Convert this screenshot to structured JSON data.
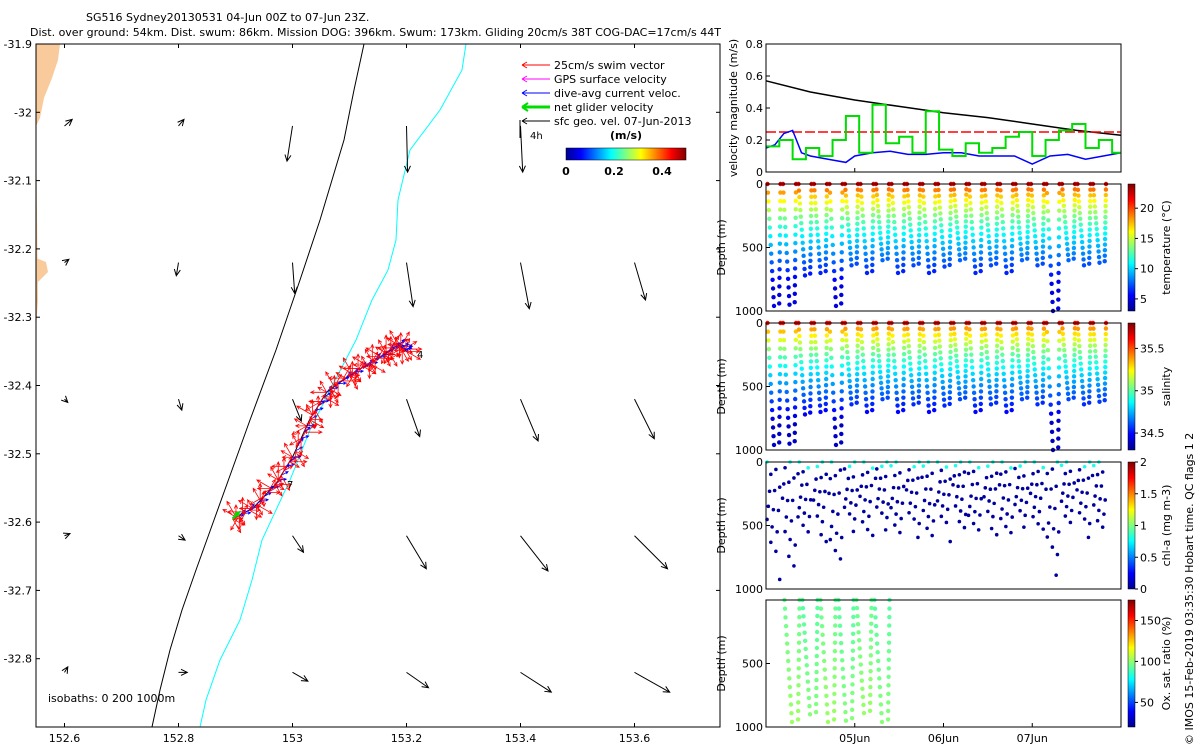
{
  "title_line1": "SG516 Sydney20130531 04-Jun 00Z to 07-Jun 23Z.",
  "title_line2": "Dist. over ground: 54km. Dist. swum: 86km. Mission DOG: 396km. Swum: 173km. Gliding 20cm/s 38T COG-DAC=17cm/s 44T",
  "credit": "© IMOS 15-Feb-2019 03:35:30 Hobart time. QC flags 1  2",
  "colors": {
    "land": "#f9cb9c",
    "coast_isobath": "#000000",
    "isobath_200": "#000000",
    "isobath_1000": "#00ffff",
    "swim": "#ff0000",
    "gps": "#ff00ff",
    "dac": "#0000ff",
    "net": "#00dd00",
    "geo": "#000000"
  },
  "chart_data": [
    {
      "type": "vector-map",
      "xlim": [
        152.55,
        153.75
      ],
      "ylim": [
        -32.9,
        -31.9
      ],
      "xticks": [
        152.6,
        152.8,
        153,
        153.2,
        153.4,
        153.6
      ],
      "xtick_labels": [
        "152.6",
        "152.8",
        "153",
        "153.2",
        "153.4",
        "153.6"
      ],
      "yticks": [
        -31.9,
        -32,
        -32.1,
        -32.2,
        -32.3,
        -32.4,
        -32.5,
        -32.6,
        -32.7,
        -32.8
      ],
      "ytick_labels": [
        "-31.9",
        "-32",
        "-32.1",
        "-32.2",
        "-32.3",
        "-32.4",
        "-32.5",
        "-32.6",
        "-32.7",
        "-32.8"
      ],
      "legend": [
        "25cm/s swim vector",
        "GPS surface velocity",
        "dive-avg current veloc.",
        "net glider velocity",
        "sfc geo. vel. 07-Jun-2013"
      ],
      "legend_scale_label": "4h",
      "colorbar": {
        "label": "(m/s)",
        "ticks": [
          "0",
          "0.2",
          "0.4"
        ],
        "range": [
          0,
          0.5
        ]
      },
      "isobaths_text": "isobaths: 0   200  1000m",
      "track_labels": [
        "4",
        "7"
      ],
      "track": [
        [
          152.895,
          -32.595
        ],
        [
          152.93,
          -32.58
        ],
        [
          152.97,
          -32.545
        ],
        [
          153.0,
          -32.505
        ],
        [
          153.03,
          -32.45
        ],
        [
          153.06,
          -32.41
        ],
        [
          153.1,
          -32.385
        ],
        [
          153.13,
          -32.37
        ],
        [
          153.16,
          -32.355
        ],
        [
          153.185,
          -32.34
        ],
        [
          153.2,
          -32.35
        ]
      ],
      "geo_vectors": [
        {
          "lon": 152.6,
          "lat": -32.02,
          "u": 0.07,
          "v": 0.06
        },
        {
          "lon": 152.8,
          "lat": -32.02,
          "u": 0.05,
          "v": 0.06
        },
        {
          "lon": 153.0,
          "lat": -32.02,
          "u": -0.05,
          "v": -0.32
        },
        {
          "lon": 153.2,
          "lat": -32.02,
          "u": 0.01,
          "v": -0.42
        },
        {
          "lon": 153.4,
          "lat": -32.02,
          "u": 0.02,
          "v": -0.42
        },
        {
          "lon": 152.6,
          "lat": -32.22,
          "u": 0.04,
          "v": 0.03
        },
        {
          "lon": 152.8,
          "lat": -32.22,
          "u": -0.02,
          "v": -0.12
        },
        {
          "lon": 153.0,
          "lat": -32.22,
          "u": 0.02,
          "v": -0.28
        },
        {
          "lon": 153.2,
          "lat": -32.22,
          "u": 0.06,
          "v": -0.4
        },
        {
          "lon": 153.4,
          "lat": -32.22,
          "u": 0.08,
          "v": -0.42
        },
        {
          "lon": 153.6,
          "lat": -32.22,
          "u": 0.1,
          "v": -0.34
        },
        {
          "lon": 152.6,
          "lat": -32.42,
          "u": 0.03,
          "v": -0.03
        },
        {
          "lon": 152.8,
          "lat": -32.42,
          "u": 0.03,
          "v": -0.1
        },
        {
          "lon": 153.0,
          "lat": -32.42,
          "u": 0.08,
          "v": -0.2
        },
        {
          "lon": 153.2,
          "lat": -32.42,
          "u": 0.12,
          "v": -0.34
        },
        {
          "lon": 153.4,
          "lat": -32.42,
          "u": 0.16,
          "v": -0.38
        },
        {
          "lon": 153.6,
          "lat": -32.42,
          "u": 0.18,
          "v": -0.36
        },
        {
          "lon": 152.6,
          "lat": -32.62,
          "u": 0.05,
          "v": 0.02
        },
        {
          "lon": 152.8,
          "lat": -32.62,
          "u": 0.06,
          "v": -0.04
        },
        {
          "lon": 153.0,
          "lat": -32.62,
          "u": 0.1,
          "v": -0.15
        },
        {
          "lon": 153.2,
          "lat": -32.62,
          "u": 0.18,
          "v": -0.3
        },
        {
          "lon": 153.4,
          "lat": -32.62,
          "u": 0.25,
          "v": -0.32
        },
        {
          "lon": 153.6,
          "lat": -32.62,
          "u": 0.3,
          "v": -0.3
        },
        {
          "lon": 152.6,
          "lat": -32.82,
          "u": 0.03,
          "v": 0.05
        },
        {
          "lon": 152.8,
          "lat": -32.82,
          "u": 0.08,
          "v": 0.0
        },
        {
          "lon": 153.0,
          "lat": -32.82,
          "u": 0.14,
          "v": -0.08
        },
        {
          "lon": 153.2,
          "lat": -32.82,
          "u": 0.2,
          "v": -0.14
        },
        {
          "lon": 153.4,
          "lat": -32.82,
          "u": 0.28,
          "v": -0.18
        },
        {
          "lon": 153.6,
          "lat": -32.82,
          "u": 0.32,
          "v": -0.18
        }
      ]
    },
    {
      "type": "line",
      "ylabel": "velocity magnitude (m/s)",
      "ylim": [
        0,
        0.8
      ],
      "yticks": [
        0,
        0.2,
        0.4,
        0.6,
        0.8
      ],
      "ytick_labels": [
        "0",
        "0.2",
        "0.4",
        "0.6",
        "0.8"
      ],
      "xlim": [
        0,
        4
      ],
      "xticks": [
        1,
        2,
        3
      ],
      "xtick_labels": [
        "05Jun",
        "06Jun",
        "07Jun"
      ],
      "series": [
        {
          "color": "#000000",
          "x": [
            0,
            0.5,
            1,
            1.5,
            2,
            2.5,
            3,
            3.5,
            4
          ],
          "y": [
            0.57,
            0.5,
            0.45,
            0.41,
            0.37,
            0.34,
            0.3,
            0.26,
            0.23
          ]
        },
        {
          "color": "#ff0000",
          "dashed": true,
          "x": [
            0,
            4
          ],
          "y": [
            0.25,
            0.25
          ]
        },
        {
          "color": "#0000ff",
          "x": [
            0,
            0.1,
            0.2,
            0.3,
            0.4,
            0.5,
            0.7,
            0.9,
            1.0,
            1.2,
            1.4,
            1.6,
            1.8,
            2.0,
            2.2,
            2.4,
            2.6,
            2.8,
            3.0,
            3.2,
            3.4,
            3.6,
            3.8,
            4.0
          ],
          "y": [
            0.15,
            0.17,
            0.24,
            0.26,
            0.12,
            0.1,
            0.08,
            0.06,
            0.1,
            0.12,
            0.13,
            0.11,
            0.11,
            0.12,
            0.12,
            0.1,
            0.1,
            0.1,
            0.05,
            0.1,
            0.11,
            0.08,
            0.1,
            0.12
          ]
        },
        {
          "color": "#00dd00",
          "steps": true,
          "x": [
            0,
            0.15,
            0.3,
            0.45,
            0.6,
            0.75,
            0.9,
            1.05,
            1.2,
            1.35,
            1.5,
            1.65,
            1.8,
            1.95,
            2.1,
            2.25,
            2.4,
            2.55,
            2.7,
            2.85,
            3.0,
            3.15,
            3.3,
            3.45,
            3.6,
            3.75,
            3.9
          ],
          "y": [
            0.16,
            0.2,
            0.08,
            0.15,
            0.1,
            0.2,
            0.35,
            0.12,
            0.42,
            0.18,
            0.22,
            0.12,
            0.38,
            0.14,
            0.1,
            0.18,
            0.12,
            0.15,
            0.22,
            0.25,
            0.1,
            0.2,
            0.26,
            0.3,
            0.15,
            0.2,
            0.12
          ]
        }
      ]
    },
    {
      "type": "scatter",
      "variable": "temperature",
      "ylabel": "Depth (m)",
      "ylim": [
        1000,
        0
      ],
      "yticks": [
        0,
        500,
        1000
      ],
      "ytick_labels": [
        "0",
        "500",
        "1000"
      ],
      "colorbar": {
        "label": "temperature (°C)",
        "min": 3,
        "max": 24,
        "ticks": [
          5,
          10,
          15,
          20
        ],
        "tick_labels": [
          "5",
          "10",
          "15",
          "20"
        ]
      },
      "dive_count": 22,
      "dive_depths": [
        960,
        950,
        720,
        700,
        960,
        640,
        700,
        600,
        700,
        640,
        700,
        650,
        600,
        700,
        640,
        700,
        600,
        640,
        1000,
        600,
        640,
        620
      ],
      "surface_value": 22,
      "deep_value": 5,
      "xlim": [
        0,
        4
      ]
    },
    {
      "type": "scatter",
      "variable": "salinity",
      "ylabel": "Depth (m)",
      "ylim": [
        1000,
        0
      ],
      "yticks": [
        0,
        500,
        1000
      ],
      "ytick_labels": [
        "0",
        "500",
        "1000"
      ],
      "colorbar": {
        "label": "salinity",
        "min": 34.3,
        "max": 35.8,
        "ticks": [
          34.5,
          35,
          35.5
        ],
        "tick_labels": [
          "34.5",
          "35",
          "35.5"
        ]
      },
      "dive_count": 22,
      "dive_depths": [
        960,
        950,
        720,
        700,
        960,
        640,
        700,
        600,
        700,
        640,
        700,
        650,
        600,
        700,
        640,
        700,
        600,
        640,
        1000,
        600,
        640,
        620
      ],
      "surface_value": 35.6,
      "deep_value": 34.4,
      "xlim": [
        0,
        4
      ]
    },
    {
      "type": "scatter",
      "variable": "chl-a",
      "ylabel": "Depth (m)",
      "ylim": [
        1000,
        0
      ],
      "yticks": [
        0,
        500,
        1000
      ],
      "ytick_labels": [
        "0",
        "500",
        "1000"
      ],
      "colorbar": {
        "label": "chl-a (mg m-3)",
        "min": 0,
        "max": 2,
        "ticks": [
          0,
          0.5,
          1,
          1.5,
          2
        ],
        "tick_labels": [
          "0",
          "0.5",
          "1",
          "1.5",
          "2"
        ]
      },
      "dive_count": 22,
      "dive_depths": [
        960,
        950,
        720,
        700,
        960,
        640,
        700,
        600,
        700,
        640,
        700,
        650,
        600,
        700,
        640,
        700,
        600,
        640,
        1000,
        600,
        640,
        620
      ],
      "xlim": [
        0,
        4
      ]
    },
    {
      "type": "scatter",
      "variable": "oxygen saturation",
      "ylabel": "Depth (m)",
      "ylim": [
        1000,
        0
      ],
      "yticks": [
        500,
        1000
      ],
      "ytick_labels": [
        "500",
        "1000"
      ],
      "colorbar": {
        "label": "Ox. sat. ratio (%)",
        "min": 20,
        "max": 175,
        "ticks": [
          50,
          100,
          150
        ],
        "tick_labels": [
          "50",
          "100",
          "150"
        ]
      },
      "dive_count": 6,
      "dive_depths": [
        960,
        900,
        960,
        950,
        890,
        960
      ],
      "xlim": [
        0,
        4
      ]
    }
  ]
}
